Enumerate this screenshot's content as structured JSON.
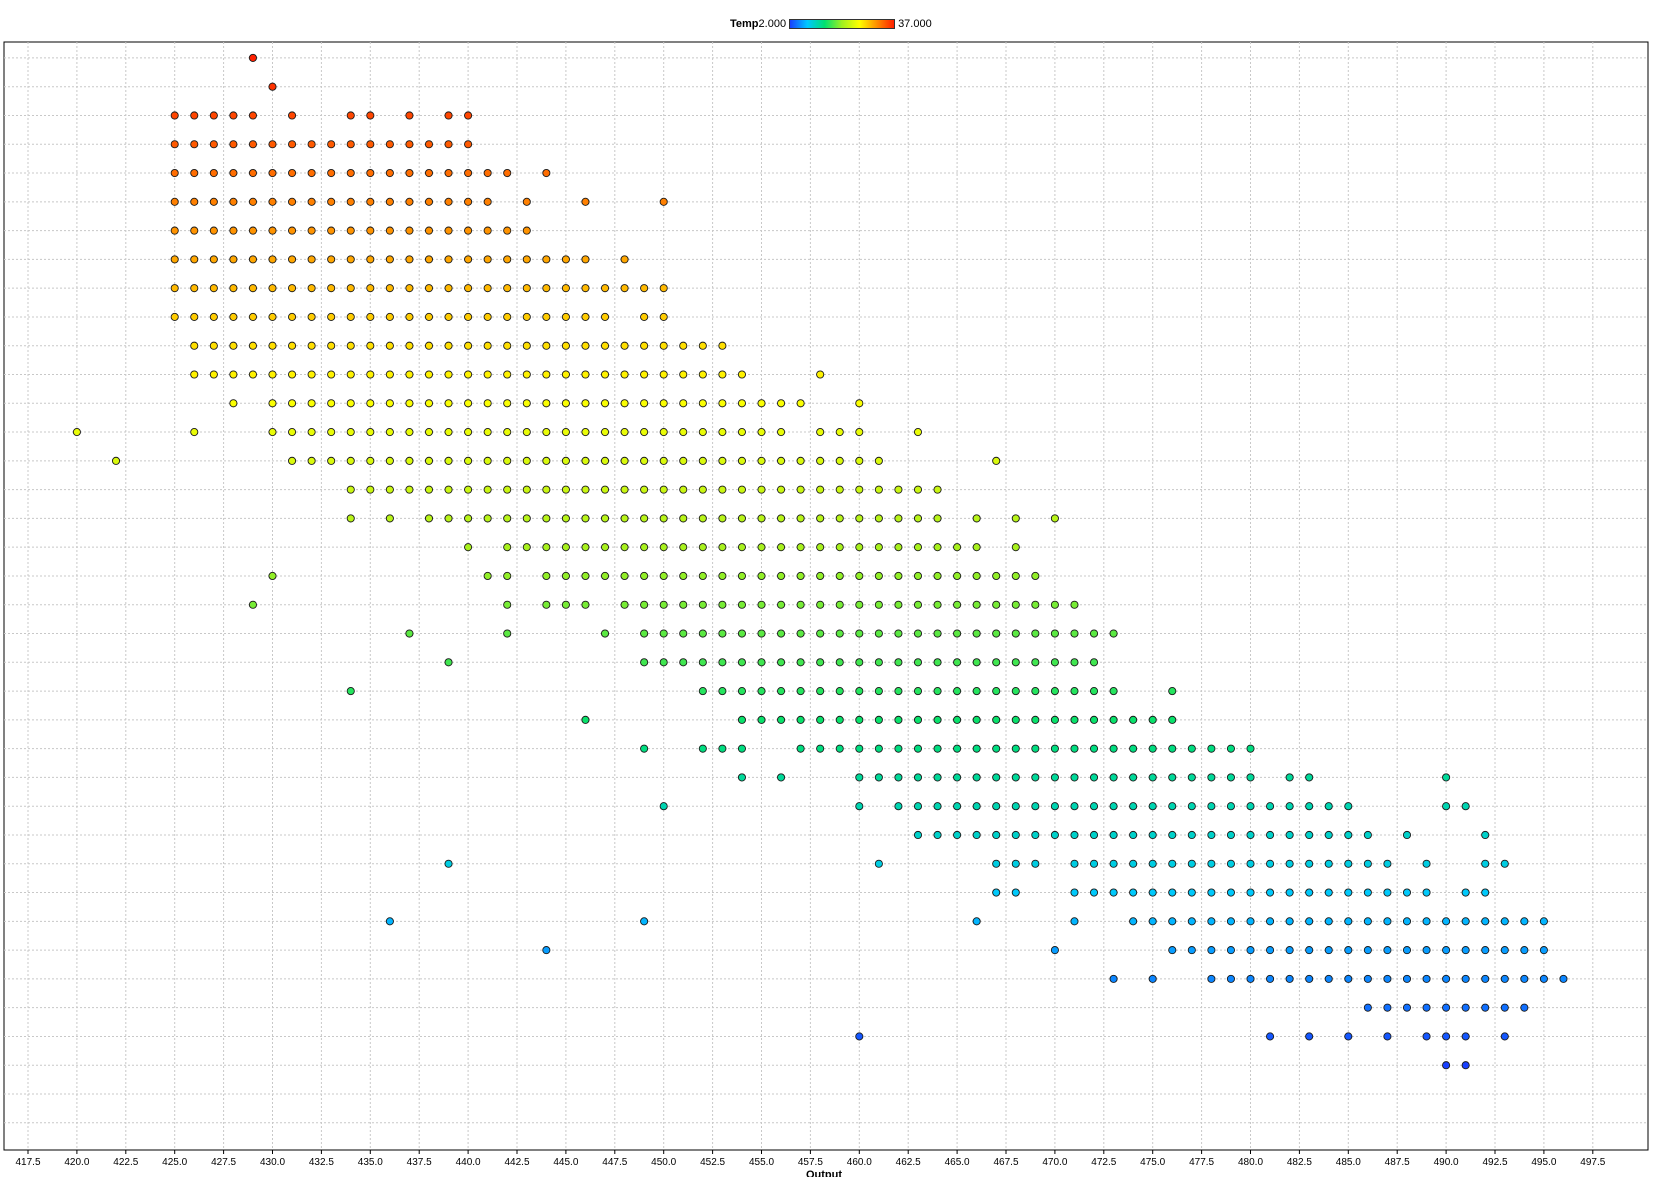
{
  "legend": {
    "variable": "Temp",
    "min_label": "2.000",
    "max_label": "37.000"
  },
  "chart_data": {
    "type": "scatter",
    "title": "",
    "xlabel": "Output",
    "ylabel": "",
    "xlim": [
      416.5,
      498.5
    ],
    "x_ticks": [
      "417.5",
      "420.0",
      "422.5",
      "425.0",
      "427.5",
      "430.0",
      "432.5",
      "435.0",
      "437.5",
      "440.0",
      "442.5",
      "445.0",
      "447.5",
      "450.0",
      "452.5",
      "455.0",
      "457.5",
      "460.0",
      "462.5",
      "465.0",
      "467.5",
      "470.0",
      "472.5",
      "475.0",
      "477.5",
      "480.0",
      "482.5",
      "485.0",
      "487.5",
      "490.0",
      "492.5",
      "495.0",
      "497.5"
    ],
    "ylim": [
      0,
      38
    ],
    "y_ticks": "unlabeled",
    "grid": true,
    "color_variable": "Temp",
    "color_range": [
      2,
      37
    ],
    "colormap": [
      "#1840ff",
      "#00c8ff",
      "#00e070",
      "#a0f020",
      "#ffff00",
      "#ff9000",
      "#ff2000"
    ],
    "legend_position": "top-center",
    "rows": [
      {
        "y": 37,
        "x": [
          429
        ]
      },
      {
        "y": 36,
        "x": [
          430
        ]
      },
      {
        "y": 35,
        "x": [
          425,
          426,
          427,
          428,
          429,
          431,
          434,
          435,
          437,
          439,
          440
        ]
      },
      {
        "y": 34,
        "x": [
          425,
          426,
          427,
          428,
          429,
          430,
          431,
          432,
          433,
          434,
          435,
          436,
          437,
          438,
          439,
          440
        ]
      },
      {
        "y": 33,
        "x": [
          425,
          426,
          427,
          428,
          429,
          430,
          431,
          432,
          433,
          434,
          435,
          436,
          437,
          438,
          439,
          440,
          441,
          442,
          444
        ]
      },
      {
        "y": 32,
        "x": [
          425,
          426,
          427,
          428,
          429,
          430,
          431,
          432,
          433,
          434,
          435,
          436,
          437,
          438,
          439,
          440,
          441,
          443,
          446,
          450
        ]
      },
      {
        "y": 31,
        "x": [
          425,
          426,
          427,
          428,
          429,
          430,
          431,
          432,
          433,
          434,
          435,
          436,
          437,
          438,
          439,
          440,
          441,
          442,
          443
        ]
      },
      {
        "y": 30,
        "x": [
          425,
          426,
          427,
          428,
          429,
          430,
          431,
          432,
          433,
          434,
          435,
          436,
          437,
          438,
          439,
          440,
          441,
          442,
          443,
          444,
          445,
          446,
          448
        ]
      },
      {
        "y": 29,
        "x": [
          425,
          426,
          427,
          428,
          429,
          430,
          431,
          432,
          433,
          434,
          435,
          436,
          437,
          438,
          439,
          440,
          441,
          442,
          443,
          444,
          445,
          446,
          447,
          448,
          449,
          450
        ]
      },
      {
        "y": 28,
        "x": [
          425,
          426,
          427,
          428,
          429,
          430,
          431,
          432,
          433,
          434,
          435,
          436,
          437,
          438,
          439,
          440,
          441,
          442,
          443,
          444,
          445,
          446,
          447,
          449,
          450
        ]
      },
      {
        "y": 27,
        "x": [
          426,
          427,
          428,
          429,
          430,
          431,
          432,
          433,
          434,
          435,
          436,
          437,
          438,
          439,
          440,
          441,
          442,
          443,
          444,
          445,
          446,
          447,
          448,
          449,
          450,
          451,
          452,
          453
        ]
      },
      {
        "y": 26,
        "x": [
          426,
          427,
          428,
          429,
          430,
          431,
          432,
          433,
          434,
          435,
          436,
          437,
          438,
          439,
          440,
          441,
          442,
          443,
          444,
          445,
          446,
          447,
          448,
          449,
          450,
          451,
          452,
          453,
          454,
          458
        ]
      },
      {
        "y": 25,
        "x": [
          428,
          430,
          431,
          432,
          433,
          434,
          435,
          436,
          437,
          438,
          439,
          440,
          441,
          442,
          443,
          444,
          445,
          446,
          447,
          448,
          449,
          450,
          451,
          452,
          453,
          454,
          455,
          456,
          457,
          460
        ]
      },
      {
        "y": 24,
        "x": [
          420,
          426,
          430,
          431,
          432,
          433,
          434,
          435,
          436,
          437,
          438,
          439,
          440,
          441,
          442,
          443,
          444,
          445,
          446,
          447,
          448,
          449,
          450,
          451,
          452,
          453,
          454,
          455,
          456,
          458,
          459,
          460,
          463
        ]
      },
      {
        "y": 23,
        "x": [
          422,
          431,
          432,
          433,
          434,
          435,
          436,
          437,
          438,
          439,
          440,
          441,
          442,
          443,
          444,
          445,
          446,
          447,
          448,
          449,
          450,
          451,
          452,
          453,
          454,
          455,
          456,
          457,
          458,
          459,
          460,
          461,
          467
        ]
      },
      {
        "y": 22,
        "x": [
          434,
          435,
          436,
          437,
          438,
          439,
          440,
          441,
          442,
          443,
          444,
          445,
          446,
          447,
          448,
          449,
          450,
          451,
          452,
          453,
          454,
          455,
          456,
          457,
          458,
          459,
          460,
          461,
          462,
          463,
          464
        ]
      },
      {
        "y": 21,
        "x": [
          434,
          436,
          438,
          439,
          440,
          441,
          442,
          443,
          444,
          445,
          446,
          447,
          448,
          449,
          450,
          451,
          452,
          453,
          454,
          455,
          456,
          457,
          458,
          459,
          460,
          461,
          462,
          463,
          464,
          466,
          468,
          470
        ]
      },
      {
        "y": 20,
        "x": [
          440,
          442,
          443,
          444,
          445,
          446,
          447,
          448,
          449,
          450,
          451,
          452,
          453,
          454,
          455,
          456,
          457,
          458,
          459,
          460,
          461,
          462,
          463,
          464,
          465,
          466,
          468
        ]
      },
      {
        "y": 19,
        "x": [
          430,
          441,
          442,
          444,
          445,
          446,
          447,
          448,
          449,
          450,
          451,
          452,
          453,
          454,
          455,
          456,
          457,
          458,
          459,
          460,
          461,
          462,
          463,
          464,
          465,
          466,
          467,
          468,
          469
        ]
      },
      {
        "y": 18,
        "x": [
          429,
          442,
          444,
          445,
          446,
          448,
          449,
          450,
          451,
          452,
          453,
          454,
          455,
          456,
          457,
          458,
          459,
          460,
          461,
          462,
          463,
          464,
          465,
          466,
          467,
          468,
          469,
          470,
          471
        ]
      },
      {
        "y": 17,
        "x": [
          437,
          442,
          447,
          449,
          450,
          451,
          452,
          453,
          454,
          455,
          456,
          457,
          458,
          459,
          460,
          461,
          462,
          463,
          464,
          465,
          466,
          467,
          468,
          469,
          470,
          471,
          472,
          473
        ]
      },
      {
        "y": 16,
        "x": [
          439,
          449,
          450,
          451,
          452,
          453,
          454,
          455,
          456,
          457,
          458,
          459,
          460,
          461,
          462,
          463,
          464,
          465,
          466,
          467,
          468,
          469,
          470,
          471,
          472
        ]
      },
      {
        "y": 15,
        "x": [
          434,
          452,
          453,
          454,
          455,
          456,
          457,
          458,
          459,
          460,
          461,
          462,
          463,
          464,
          465,
          466,
          467,
          468,
          469,
          470,
          471,
          472,
          473,
          476
        ]
      },
      {
        "y": 14,
        "x": [
          446,
          454,
          455,
          456,
          457,
          458,
          459,
          460,
          461,
          462,
          463,
          464,
          465,
          466,
          467,
          468,
          469,
          470,
          471,
          472,
          473,
          474,
          475,
          476
        ]
      },
      {
        "y": 13,
        "x": [
          449,
          452,
          453,
          454,
          457,
          458,
          459,
          460,
          461,
          462,
          463,
          464,
          465,
          466,
          467,
          468,
          469,
          470,
          471,
          472,
          473,
          474,
          475,
          476,
          477,
          478,
          479,
          480
        ]
      },
      {
        "y": 12,
        "x": [
          454,
          456,
          460,
          461,
          462,
          463,
          464,
          465,
          466,
          467,
          468,
          469,
          470,
          471,
          472,
          473,
          474,
          475,
          476,
          477,
          478,
          479,
          480,
          482,
          483,
          490
        ]
      },
      {
        "y": 11,
        "x": [
          450,
          460,
          462,
          463,
          464,
          465,
          466,
          467,
          468,
          469,
          470,
          471,
          472,
          473,
          474,
          475,
          476,
          477,
          478,
          479,
          480,
          481,
          482,
          483,
          484,
          485,
          490,
          491
        ]
      },
      {
        "y": 10,
        "x": [
          463,
          464,
          465,
          466,
          467,
          468,
          469,
          470,
          471,
          472,
          473,
          474,
          475,
          476,
          477,
          478,
          479,
          480,
          481,
          482,
          483,
          484,
          485,
          486,
          488,
          492
        ]
      },
      {
        "y": 9,
        "x": [
          439,
          461,
          467,
          468,
          469,
          471,
          472,
          473,
          474,
          475,
          476,
          477,
          478,
          479,
          480,
          481,
          482,
          483,
          484,
          485,
          486,
          487,
          489,
          492,
          493
        ]
      },
      {
        "y": 8,
        "x": [
          467,
          468,
          471,
          472,
          473,
          474,
          475,
          476,
          477,
          478,
          479,
          480,
          481,
          482,
          483,
          484,
          485,
          486,
          487,
          488,
          489,
          491,
          492
        ]
      },
      {
        "y": 7,
        "x": [
          436,
          449,
          466,
          471,
          474,
          475,
          476,
          477,
          478,
          479,
          480,
          481,
          482,
          483,
          484,
          485,
          486,
          487,
          488,
          489,
          490,
          491,
          492,
          493,
          494,
          495
        ]
      },
      {
        "y": 6,
        "x": [
          444,
          470,
          476,
          477,
          478,
          479,
          480,
          481,
          482,
          483,
          484,
          485,
          486,
          487,
          488,
          489,
          490,
          491,
          492,
          493,
          494,
          495
        ]
      },
      {
        "y": 5,
        "x": [
          473,
          475,
          478,
          479,
          480,
          481,
          482,
          483,
          484,
          485,
          486,
          487,
          488,
          489,
          490,
          491,
          492,
          493,
          494,
          495,
          496
        ]
      },
      {
        "y": 4,
        "x": [
          486,
          487,
          488,
          489,
          490,
          491,
          492,
          493,
          494
        ]
      },
      {
        "y": 3,
        "x": [
          460,
          481,
          483,
          485,
          487,
          489,
          490,
          491,
          493
        ]
      },
      {
        "y": 2,
        "x": [
          490,
          491
        ]
      }
    ]
  }
}
